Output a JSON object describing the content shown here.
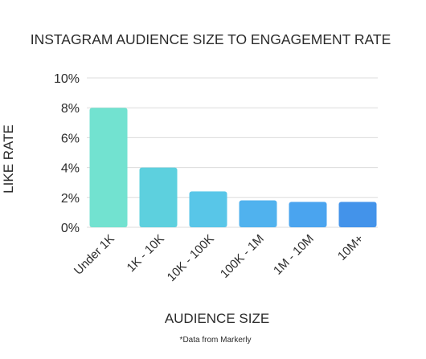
{
  "chart_data": {
    "type": "bar",
    "title": "INSTAGRAM AUDIENCE SIZE TO ENGAGEMENT RATE",
    "xlabel": "AUDIENCE SIZE",
    "ylabel": "LIKE RATE",
    "categories": [
      "Under 1K",
      "1K - 10K",
      "10K - 100K",
      "100K - 1M",
      "1M - 10M",
      "10M+"
    ],
    "values": [
      8.0,
      4.0,
      2.4,
      1.8,
      1.7,
      1.7
    ],
    "ylim": [
      0,
      10
    ],
    "yticks": [
      0,
      2,
      4,
      6,
      8,
      10
    ],
    "ytick_labels": [
      "0%",
      "2%",
      "4%",
      "6%",
      "8%",
      "10%"
    ],
    "grid": true,
    "legend": "none",
    "colors": [
      "#72e2d0",
      "#5dd0de",
      "#58c6e8",
      "#50b2ee",
      "#4aa4ef",
      "#4393ea"
    ],
    "gridline_color": "#dcdcdc"
  },
  "footnote": "*Data from Markerly"
}
